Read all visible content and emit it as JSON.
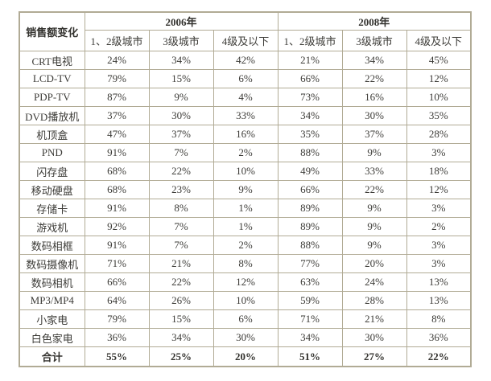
{
  "colors": {
    "background": "#ffffff",
    "border": "#b1ab95",
    "text": "#3d3c38",
    "bold_text": "#33322e"
  },
  "chart_data": {
    "type": "table",
    "title": "销售额变化",
    "corner_header": "销售额变化",
    "unit": "%",
    "col_groups": [
      {
        "label": "2006年",
        "span": 3
      },
      {
        "label": "2008年",
        "span": 3
      }
    ],
    "columns": [
      "1、2级城市",
      "3级城市",
      "4级及以下",
      "1、2级城市",
      "3级城市",
      "4级及以下"
    ],
    "rows": [
      {
        "label": "CRT电视",
        "values": [
          "24%",
          "34%",
          "42%",
          "21%",
          "34%",
          "45%"
        ]
      },
      {
        "label": "LCD-TV",
        "values": [
          "79%",
          "15%",
          "6%",
          "66%",
          "22%",
          "12%"
        ]
      },
      {
        "label": "PDP-TV",
        "values": [
          "87%",
          "9%",
          "4%",
          "73%",
          "16%",
          "10%"
        ]
      },
      {
        "label": "DVD播放机",
        "values": [
          "37%",
          "30%",
          "33%",
          "34%",
          "30%",
          "35%"
        ]
      },
      {
        "label": "机顶盒",
        "values": [
          "47%",
          "37%",
          "16%",
          "35%",
          "37%",
          "28%"
        ]
      },
      {
        "label": "PND",
        "values": [
          "91%",
          "7%",
          "2%",
          "88%",
          "9%",
          "3%"
        ]
      },
      {
        "label": "闪存盘",
        "values": [
          "68%",
          "22%",
          "10%",
          "49%",
          "33%",
          "18%"
        ]
      },
      {
        "label": "移动硬盘",
        "values": [
          "68%",
          "23%",
          "9%",
          "66%",
          "22%",
          "12%"
        ]
      },
      {
        "label": "存储卡",
        "values": [
          "91%",
          "8%",
          "1%",
          "89%",
          "9%",
          "3%"
        ]
      },
      {
        "label": "游戏机",
        "values": [
          "92%",
          "7%",
          "1%",
          "89%",
          "9%",
          "2%"
        ]
      },
      {
        "label": "数码相框",
        "values": [
          "91%",
          "7%",
          "2%",
          "88%",
          "9%",
          "3%"
        ]
      },
      {
        "label": "数码摄像机",
        "values": [
          "71%",
          "21%",
          "8%",
          "77%",
          "20%",
          "3%"
        ]
      },
      {
        "label": "数码相机",
        "values": [
          "66%",
          "22%",
          "12%",
          "63%",
          "24%",
          "13%"
        ]
      },
      {
        "label": "MP3/MP4",
        "values": [
          "64%",
          "26%",
          "10%",
          "59%",
          "28%",
          "13%"
        ]
      },
      {
        "label": "小家电",
        "values": [
          "79%",
          "15%",
          "6%",
          "71%",
          "21%",
          "8%"
        ]
      },
      {
        "label": "白色家电",
        "values": [
          "36%",
          "34%",
          "30%",
          "34%",
          "30%",
          "36%"
        ]
      },
      {
        "label": "合计",
        "values": [
          "55%",
          "25%",
          "20%",
          "51%",
          "27%",
          "22%"
        ],
        "total": true
      }
    ]
  }
}
